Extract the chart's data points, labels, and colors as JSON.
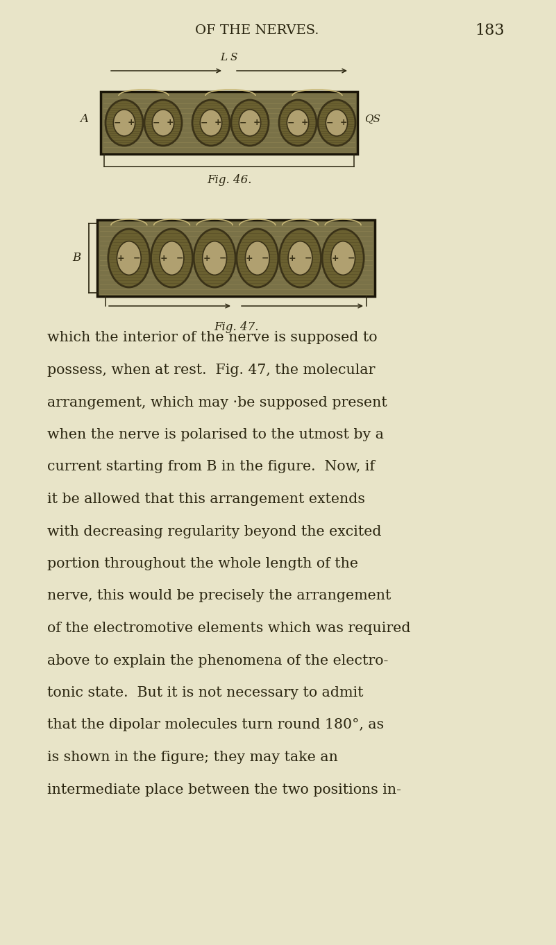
{
  "bg_color": "#e8e4c8",
  "page_header": "OF THE NERVES.",
  "page_number": "183",
  "fig46_caption": "Fig. 46.",
  "fig47_caption": "Fig. 47.",
  "fig46_label_left": "A",
  "fig46_label_right": "QS",
  "fig46_label_top": "L S",
  "fig47_label_left": "B",
  "body_text": [
    "which the interior of the nerve is supposed to",
    "possess, when at rest.  Fig. 47, the molecular",
    "arrangement, which may ·be supposed present",
    "when the nerve is polarised to the utmost by a",
    "current starting from B in the figure.  Now, if",
    "it be allowed that this arrangement extends",
    "with decreasing regularity beyond the excited",
    "portion throughout the whole length of the",
    "nerve, this would be precisely the arrangement",
    "of the electromotive elements which was required",
    "above to explain the phenomena of the electro-",
    "tonic state.  But it is not necessary to admit",
    "that the dipolar molecules turn round 180°, as",
    "is shown in the figure; they may take an",
    "intermediate place between the two positions in-"
  ],
  "dark_color": "#2a2510",
  "rect_fill": "#7a7248",
  "rect_edge": "#1a1508",
  "mol_dark": "#3a3218",
  "mol_mid": "#6a6030",
  "mol_light": "#b0a070",
  "mol_highlight": "#d0c890"
}
